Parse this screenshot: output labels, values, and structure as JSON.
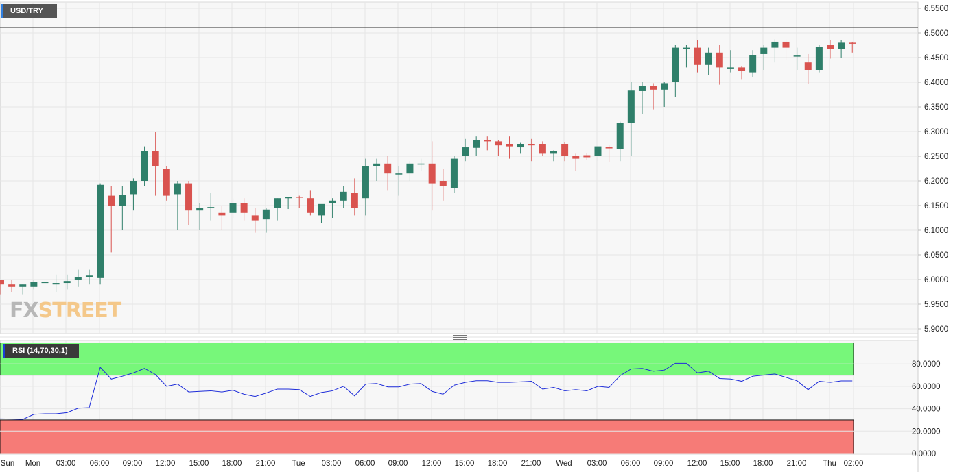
{
  "symbol": "USD/TRY",
  "indicator_label": "RSI (14,70,30,1)",
  "logo": {
    "fx": "FX",
    "street": "STREET"
  },
  "colors": {
    "up": "#2f7f6a",
    "down": "#d9534f",
    "rsi_line": "#1c2bd9",
    "overbought_zone": "#77f77a",
    "oversold_zone": "#f67b77",
    "price_line": "#555555"
  },
  "chart_data": [
    {
      "type": "candlestick",
      "title": "USD/TRY",
      "price_axis_ticks": [
        6.55,
        6.5,
        6.45,
        6.4,
        6.35,
        6.3,
        6.25,
        6.2,
        6.15,
        6.1,
        6.05,
        6.0,
        5.95,
        5.9
      ],
      "price_axis_labels": [
        "6.5500",
        "6.5000",
        "6.4500",
        "6.4000",
        "6.3500",
        "6.3000",
        "6.2500",
        "6.2000",
        "6.1500",
        "6.1000",
        "6.0500",
        "6.0000",
        "5.9500",
        "5.9000"
      ],
      "ylim": [
        5.89,
        6.56
      ],
      "current_price": 6.511,
      "time_axis_labels": [
        "Sun",
        "Mon",
        "03:00",
        "06:00",
        "09:00",
        "12:00",
        "15:00",
        "18:00",
        "21:00",
        "Tue",
        "03:00",
        "06:00",
        "09:00",
        "12:00",
        "15:00",
        "18:00",
        "21:00",
        "Wed",
        "03:00",
        "06:00",
        "09:00",
        "12:00",
        "15:00",
        "18:00",
        "21:00",
        "Thu",
        "02:00"
      ],
      "candles": [
        [
          6.0,
          6.0,
          5.97,
          5.99
        ],
        [
          5.99,
          6.0,
          5.975,
          5.985
        ],
        [
          5.985,
          5.99,
          5.97,
          5.99
        ],
        [
          5.985,
          6.0,
          5.98,
          5.995
        ],
        [
          5.995,
          5.997,
          5.993,
          5.995
        ],
        [
          5.99,
          6.01,
          5.975,
          5.993
        ],
        [
          5.993,
          6.01,
          5.98,
          5.997
        ],
        [
          6.0,
          6.02,
          5.985,
          6.005
        ],
        [
          6.005,
          6.02,
          5.99,
          6.008
        ],
        [
          6.003,
          6.195,
          5.99,
          6.192
        ],
        [
          6.17,
          6.19,
          6.055,
          6.15
        ],
        [
          6.15,
          6.19,
          6.1,
          6.172
        ],
        [
          6.173,
          6.205,
          6.14,
          6.2
        ],
        [
          6.2,
          6.27,
          6.19,
          6.26
        ],
        [
          6.26,
          6.3,
          6.17,
          6.23
        ],
        [
          6.225,
          6.23,
          6.16,
          6.17
        ],
        [
          6.173,
          6.2,
          6.1,
          6.195
        ],
        [
          6.195,
          6.2,
          6.11,
          6.14
        ],
        [
          6.14,
          6.155,
          6.1,
          6.145
        ],
        [
          6.145,
          6.175,
          6.12,
          6.147
        ],
        [
          6.135,
          6.15,
          6.1,
          6.13
        ],
        [
          6.135,
          6.165,
          6.125,
          6.155
        ],
        [
          6.155,
          6.165,
          6.12,
          6.135
        ],
        [
          6.13,
          6.145,
          6.095,
          6.12
        ],
        [
          6.122,
          6.145,
          6.095,
          6.142
        ],
        [
          6.145,
          6.165,
          6.12,
          6.165
        ],
        [
          6.165,
          6.168,
          6.143,
          6.167
        ],
        [
          6.168,
          6.17,
          6.145,
          6.166
        ],
        [
          6.165,
          6.18,
          6.13,
          6.135
        ],
        [
          6.13,
          6.15,
          6.115,
          6.153
        ],
        [
          6.155,
          6.165,
          6.125,
          6.16
        ],
        [
          6.16,
          6.19,
          6.145,
          6.178
        ],
        [
          6.175,
          6.205,
          6.13,
          6.145
        ],
        [
          6.165,
          6.245,
          6.13,
          6.23
        ],
        [
          6.23,
          6.245,
          6.2,
          6.235
        ],
        [
          6.235,
          6.25,
          6.18,
          6.215
        ],
        [
          6.215,
          6.23,
          6.17,
          6.215
        ],
        [
          6.215,
          6.24,
          6.2,
          6.235
        ],
        [
          6.235,
          6.245,
          6.22,
          6.235
        ],
        [
          6.235,
          6.28,
          6.14,
          6.195
        ],
        [
          6.2,
          6.225,
          6.16,
          6.19
        ],
        [
          6.185,
          6.25,
          6.175,
          6.245
        ],
        [
          6.25,
          6.285,
          6.24,
          6.268
        ],
        [
          6.267,
          6.29,
          6.25,
          6.282
        ],
        [
          6.283,
          6.29,
          6.262,
          6.28
        ],
        [
          6.28,
          6.282,
          6.25,
          6.272
        ],
        [
          6.275,
          6.29,
          6.245,
          6.27
        ],
        [
          6.268,
          6.277,
          6.255,
          6.275
        ],
        [
          6.275,
          6.285,
          6.24,
          6.272
        ],
        [
          6.275,
          6.28,
          6.25,
          6.255
        ],
        [
          6.255,
          6.262,
          6.24,
          6.26
        ],
        [
          6.275,
          6.278,
          6.24,
          6.25
        ],
        [
          6.25,
          6.255,
          6.22,
          6.245
        ],
        [
          6.252,
          6.256,
          6.243,
          6.248
        ],
        [
          6.25,
          6.27,
          6.24,
          6.27
        ],
        [
          6.268,
          6.272,
          6.238,
          6.267
        ],
        [
          6.265,
          6.32,
          6.24,
          6.318
        ],
        [
          6.318,
          6.4,
          6.25,
          6.383
        ],
        [
          6.382,
          6.4,
          6.335,
          6.393
        ],
        [
          6.393,
          6.398,
          6.345,
          6.385
        ],
        [
          6.385,
          6.4,
          6.35,
          6.398
        ],
        [
          6.4,
          6.475,
          6.37,
          6.47
        ],
        [
          6.47,
          6.475,
          6.43,
          6.47
        ],
        [
          6.47,
          6.485,
          6.42,
          6.435
        ],
        [
          6.435,
          6.47,
          6.415,
          6.46
        ],
        [
          6.46,
          6.475,
          6.395,
          6.43
        ],
        [
          6.43,
          6.465,
          6.42,
          6.43
        ],
        [
          6.43,
          6.433,
          6.405,
          6.423
        ],
        [
          6.42,
          6.465,
          6.41,
          6.455
        ],
        [
          6.457,
          6.475,
          6.425,
          6.47
        ],
        [
          6.47,
          6.487,
          6.44,
          6.482
        ],
        [
          6.482,
          6.487,
          6.445,
          6.47
        ],
        [
          6.452,
          6.47,
          6.425,
          6.454
        ],
        [
          6.44,
          6.457,
          6.397,
          6.425
        ],
        [
          6.425,
          6.475,
          6.42,
          6.472
        ],
        [
          6.475,
          6.485,
          6.448,
          6.468
        ],
        [
          6.467,
          6.485,
          6.45,
          6.48
        ],
        [
          6.48,
          6.482,
          6.46,
          6.479
        ]
      ]
    },
    {
      "type": "line",
      "title": "RSI (14,70,30,1)",
      "series": [
        {
          "values": [
            31,
            30.8,
            30.5,
            35,
            35.5,
            35.5,
            36.5,
            40.5,
            41,
            77,
            66.5,
            69,
            72,
            76,
            70.5,
            60,
            62,
            55,
            55.5,
            56,
            55,
            56.5,
            53,
            51,
            54,
            57.5,
            57.5,
            57,
            51,
            54.5,
            56,
            60,
            51.5,
            62,
            62.5,
            59.5,
            59.5,
            62,
            62.5,
            55.5,
            53,
            61,
            63.5,
            65,
            65,
            63.5,
            63.5,
            64,
            64.5,
            57.5,
            59,
            56,
            57,
            56,
            60,
            59,
            69.5,
            75.5,
            76,
            73.5,
            74.5,
            80.5,
            80.5,
            72,
            73.5,
            67,
            66.5,
            64.5,
            69,
            70,
            71,
            68,
            65,
            57,
            64.5,
            63.5,
            64.8,
            64.8
          ]
        }
      ],
      "y_axis_labels": [
        "80.0000",
        "60.0000",
        "40.0000",
        "20.0000",
        "0.0000"
      ],
      "ylim": [
        0,
        100
      ],
      "overbought": 70,
      "oversold": 30
    }
  ]
}
